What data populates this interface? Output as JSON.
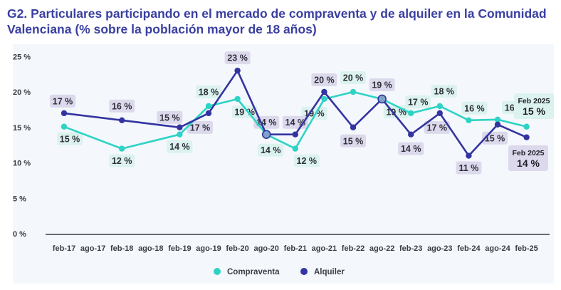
{
  "title": "G2. Particulares participando en el mercado de compraventa y de alquiler en la Comunidad Valenciana (% sobre la población mayor de 18 años)",
  "colors": {
    "compraventa": "#2ed3c5",
    "alquiler": "#3434a0",
    "compraventa_label_bg": "#dbf2ee",
    "alquiler_label_bg": "#dcd9ec"
  },
  "chart_data": {
    "type": "line",
    "title": "G2. Particulares participando en el mercado de compraventa y de alquiler en la Comunidad Valenciana (% sobre la población mayor de 18 años)",
    "ylim": [
      0,
      25
    ],
    "y_ticks": [
      "0 %",
      "5 %",
      "10 %",
      "15 %",
      "20 %",
      "25 %"
    ],
    "y_tick_values": [
      0,
      5,
      10,
      15,
      20,
      25
    ],
    "categories": [
      "feb-17",
      "ago-17",
      "feb-18",
      "ago-18",
      "feb-19",
      "ago-19",
      "feb-20",
      "ago-20",
      "feb-21",
      "ago-21",
      "feb-22",
      "ago-22",
      "feb-23",
      "ago-23",
      "feb-24",
      "ago-24",
      "feb-25"
    ],
    "grid": false,
    "legend_position": "bottom",
    "series": [
      {
        "name": "Compraventa",
        "points": [
          {
            "x": "feb-17",
            "y": 15.1,
            "label": "15 %"
          },
          {
            "x": "feb-18",
            "y": 12.0,
            "label": "12 %"
          },
          {
            "x": "feb-19",
            "y": 14.0,
            "label": "14 %"
          },
          {
            "x": "ago-19",
            "y": 18.0,
            "label": "18 %"
          },
          {
            "x": "feb-20",
            "y": 19.0,
            "label": "19 %"
          },
          {
            "x": "ago-20",
            "y": 14.0,
            "label": "14 %"
          },
          {
            "x": "feb-21",
            "y": 12.0,
            "label": "12 %"
          },
          {
            "x": "ago-21",
            "y": 19.0,
            "label": "19 %"
          },
          {
            "x": "feb-22",
            "y": 20.0,
            "label": "20 %"
          },
          {
            "x": "ago-22",
            "y": 19.0,
            "label": "19 %"
          },
          {
            "x": "feb-23",
            "y": 17.0,
            "label": "17 %"
          },
          {
            "x": "ago-23",
            "y": 18.0,
            "label": "18 %"
          },
          {
            "x": "feb-24",
            "y": 16.0,
            "label": "16 %"
          },
          {
            "x": "ago-24",
            "y": 16.1,
            "label": "16 %"
          },
          {
            "x": "feb-25",
            "y": 15.1,
            "label": ""
          }
        ]
      },
      {
        "name": "Alquiler",
        "points": [
          {
            "x": "feb-17",
            "y": 17.0,
            "label": "17 %"
          },
          {
            "x": "feb-18",
            "y": 16.0,
            "label": "16 %"
          },
          {
            "x": "feb-19",
            "y": 15.0,
            "label": "15 %"
          },
          {
            "x": "ago-19",
            "y": 17.0,
            "label": "17 %"
          },
          {
            "x": "feb-20",
            "y": 23.0,
            "label": "23 %"
          },
          {
            "x": "ago-20",
            "y": 14.0,
            "label": "14 %"
          },
          {
            "x": "feb-21",
            "y": 14.0,
            "label": "14 %"
          },
          {
            "x": "ago-21",
            "y": 20.0,
            "label": "20 %"
          },
          {
            "x": "feb-22",
            "y": 15.0,
            "label": "15 %"
          },
          {
            "x": "ago-22",
            "y": 19.0,
            "label": "19 %"
          },
          {
            "x": "feb-23",
            "y": 14.0,
            "label": "14 %"
          },
          {
            "x": "ago-23",
            "y": 17.0,
            "label": "17 %"
          },
          {
            "x": "feb-24",
            "y": 11.0,
            "label": "11 %"
          },
          {
            "x": "ago-24",
            "y": 15.4,
            "label": "15 %"
          },
          {
            "x": "feb-25",
            "y": 13.6,
            "label": ""
          }
        ]
      }
    ],
    "end_labels": [
      {
        "series": "Compraventa",
        "period": "Feb 2025",
        "value": "15 %"
      },
      {
        "series": "Alquiler",
        "period": "Feb 2025",
        "value": "14 %"
      }
    ],
    "legend": [
      "Compraventa",
      "Alquiler"
    ]
  }
}
